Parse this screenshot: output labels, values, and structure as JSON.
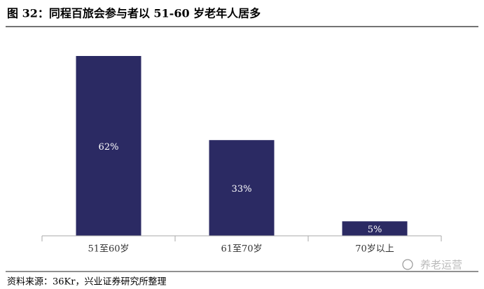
{
  "chart_data": {
    "type": "bar",
    "title": "图 32：同程百旅会参与者以 51-60 岁老年人居多",
    "categories": [
      "51至60岁",
      "61至70岁",
      "70岁以上"
    ],
    "values": [
      62,
      33,
      5
    ],
    "value_labels": [
      "62%",
      "33%",
      "5%"
    ],
    "color": "#2b2a63",
    "source": "资料来源：36Kr，兴业证券研究所整理",
    "watermark": "养老运营"
  }
}
